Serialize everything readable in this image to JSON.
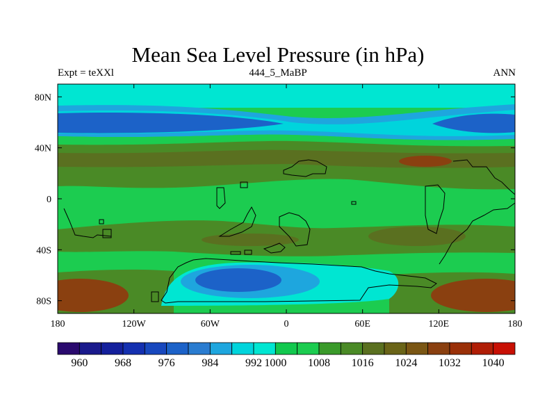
{
  "title": "Mean Sea Level Pressure (in hPa)",
  "subtitle_left": "Expt = teXXl",
  "subtitle_center": "444_5_MaBP",
  "subtitle_right": "ANN",
  "map": {
    "lon_range": [
      -180,
      180
    ],
    "lat_range": [
      -90,
      90
    ],
    "x_ticks": [
      {
        "value": -180,
        "label": "180"
      },
      {
        "value": -120,
        "label": "120W"
      },
      {
        "value": -60,
        "label": "60W"
      },
      {
        "value": 0,
        "label": "0"
      },
      {
        "value": 60,
        "label": "60E"
      },
      {
        "value": 120,
        "label": "120E"
      },
      {
        "value": 180,
        "label": "180"
      }
    ],
    "y_ticks": [
      {
        "value": 80,
        "label": "80N"
      },
      {
        "value": 40,
        "label": "40N"
      },
      {
        "value": 0,
        "label": "0"
      },
      {
        "value": -40,
        "label": "40S"
      },
      {
        "value": -80,
        "label": "80S"
      }
    ]
  },
  "colorbar": {
    "colors": [
      "#2a0a6e",
      "#1a1a8c",
      "#14209c",
      "#1430b0",
      "#1848be",
      "#1c62c8",
      "#2a7cd0",
      "#1ea6de",
      "#00d4dc",
      "#00e6d2",
      "#12c84e",
      "#1ccc50",
      "#3a9a2a",
      "#4a8a26",
      "#5a7020",
      "#6a6418",
      "#7a5614",
      "#8a4010",
      "#9a3008",
      "#b01e06",
      "#c81004"
    ],
    "labels": [
      {
        "text": "960",
        "boundary": 1
      },
      {
        "text": "968",
        "boundary": 3
      },
      {
        "text": "976",
        "boundary": 5
      },
      {
        "text": "984",
        "boundary": 7
      },
      {
        "text": "992",
        "boundary": 9
      },
      {
        "text": "1000",
        "boundary": 10
      },
      {
        "text": "1008",
        "boundary": 12
      },
      {
        "text": "1016",
        "boundary": 14
      },
      {
        "text": "1024",
        "boundary": 16
      },
      {
        "text": "1032",
        "boundary": 18
      },
      {
        "text": "1040",
        "boundary": 20
      }
    ]
  }
}
